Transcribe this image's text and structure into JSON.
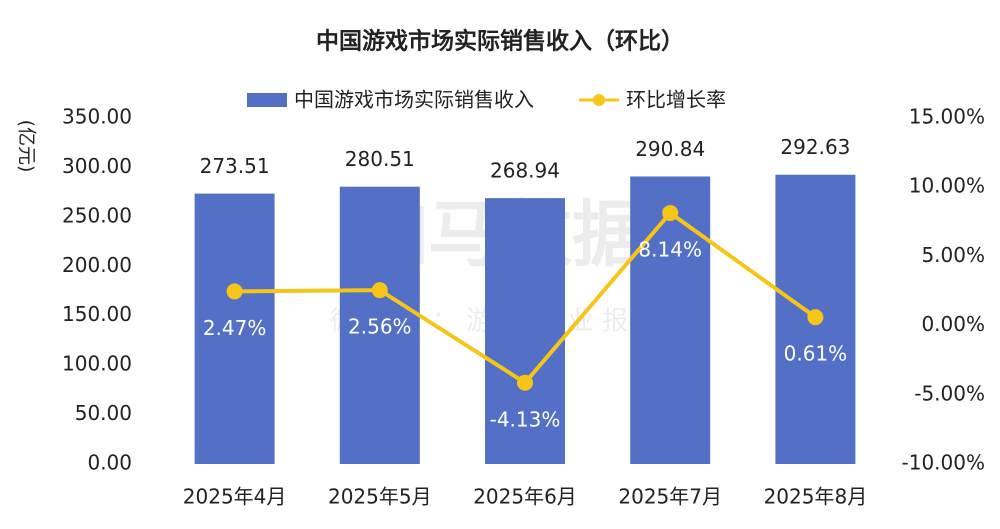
{
  "chart_data": {
    "type": "bar",
    "title": "中国游戏市场实际销售收入（环比）",
    "y_label": "(亿元)",
    "watermark": "伽马数据",
    "watermark_sub": "微信号：游戏产业报告",
    "categories": [
      "2025年4月",
      "2025年5月",
      "2025年6月",
      "2025年7月",
      "2025年8月"
    ],
    "series": [
      {
        "name": "中国游戏市场实际销售收入",
        "type": "bar",
        "color": "#5470c6",
        "values": [
          273.51,
          280.51,
          268.94,
          290.84,
          292.63
        ]
      },
      {
        "name": "环比增长率",
        "type": "line",
        "axis": "y2",
        "color": "#f5c518",
        "values": [
          2.47,
          2.56,
          -4.13,
          8.14,
          0.61
        ],
        "value_labels": [
          "2.47%",
          "2.56%",
          "-4.13%",
          "8.14%",
          "0.61%"
        ]
      }
    ],
    "ylim": [
      0,
      350
    ],
    "yticks": [
      {
        "value": 0,
        "label": "0.00"
      },
      {
        "value": 50,
        "label": "50.00"
      },
      {
        "value": 100,
        "label": "100.00"
      },
      {
        "value": 150,
        "label": "150.00"
      },
      {
        "value": 200,
        "label": "200.00"
      },
      {
        "value": 250,
        "label": "250.00"
      },
      {
        "value": 300,
        "label": "300.00"
      },
      {
        "value": 350,
        "label": "350.00"
      }
    ],
    "y2lim": [
      -10,
      15
    ],
    "y2ticks": [
      {
        "value": -10,
        "label": "-10.00%"
      },
      {
        "value": -5,
        "label": "-5.00%"
      },
      {
        "value": 0,
        "label": "0.00%"
      },
      {
        "value": 5,
        "label": "5.00%"
      },
      {
        "value": 10,
        "label": "10.00%"
      },
      {
        "value": 15,
        "label": "15.00%"
      }
    ],
    "legend": "top"
  }
}
